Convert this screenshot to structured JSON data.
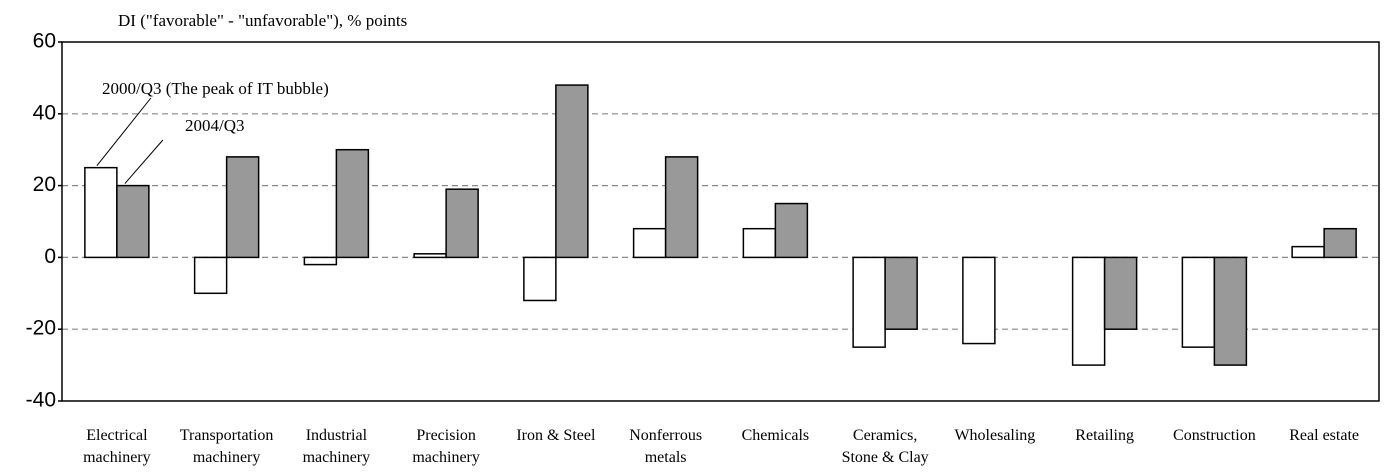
{
  "chart_data": {
    "type": "bar",
    "y_label": "DI (\"favorable\" - \"unfavorable\"), % points",
    "categories": [
      [
        "Electrical",
        "machinery"
      ],
      [
        "Transportation",
        "machinery"
      ],
      [
        "Industrial",
        "machinery"
      ],
      [
        "Precision",
        "machinery"
      ],
      [
        "Iron & Steel"
      ],
      [
        "Nonferrous",
        "metals"
      ],
      [
        "Chemicals"
      ],
      [
        "Ceramics,",
        "Stone & Clay"
      ],
      [
        "Wholesaling"
      ],
      [
        "Retailing"
      ],
      [
        "Construction"
      ],
      [
        "Real estate"
      ]
    ],
    "series": [
      {
        "name": "2000/Q3 (The peak of  IT bubble)",
        "color": "#ffffff",
        "values": [
          25,
          -10,
          -2,
          1,
          -12,
          8,
          8,
          -25,
          -24,
          -30,
          -25,
          3
        ]
      },
      {
        "name": "2004/Q3",
        "color": "#999999",
        "values": [
          20,
          28,
          30,
          19,
          48,
          28,
          15,
          -20,
          0,
          -20,
          -30,
          8
        ]
      }
    ],
    "ylim": [
      -40,
      60
    ],
    "yticks": [
      -40,
      -20,
      0,
      20,
      40,
      60
    ],
    "grid": true
  }
}
